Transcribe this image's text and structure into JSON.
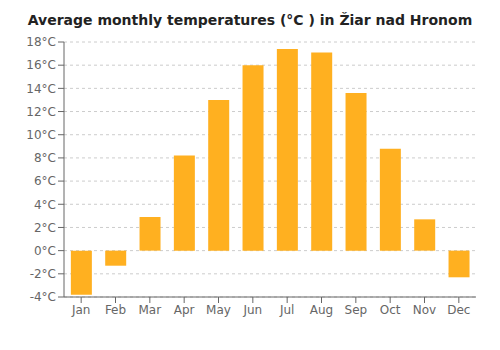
{
  "chart_data": {
    "type": "bar",
    "title": "Average monthly temperatures (°C ) in Žiar nad Hronom",
    "categories": [
      "Jan",
      "Feb",
      "Mar",
      "Apr",
      "May",
      "Jun",
      "Jul",
      "Aug",
      "Sep",
      "Oct",
      "Nov",
      "Dec"
    ],
    "values": [
      -3.8,
      -1.3,
      2.9,
      8.2,
      13.0,
      16.0,
      17.4,
      17.1,
      13.6,
      8.8,
      2.7,
      -2.3
    ],
    "color": "#FFB020",
    "ylim": [
      -4,
      18
    ],
    "yticks": [
      {
        "value": -4,
        "label": "-4°C"
      },
      {
        "value": -2,
        "label": "-2°C"
      },
      {
        "value": 0,
        "label": "0°C"
      },
      {
        "value": 2,
        "label": "2°C"
      },
      {
        "value": 4,
        "label": "4°C"
      },
      {
        "value": 6,
        "label": "6°C"
      },
      {
        "value": 8,
        "label": "8°C"
      },
      {
        "value": 10,
        "label": "10°C"
      },
      {
        "value": 12,
        "label": "12°C"
      },
      {
        "value": 14,
        "label": "14°C"
      },
      {
        "value": 16,
        "label": "16°C"
      },
      {
        "value": 18,
        "label": "18°C"
      }
    ],
    "grid": true
  }
}
